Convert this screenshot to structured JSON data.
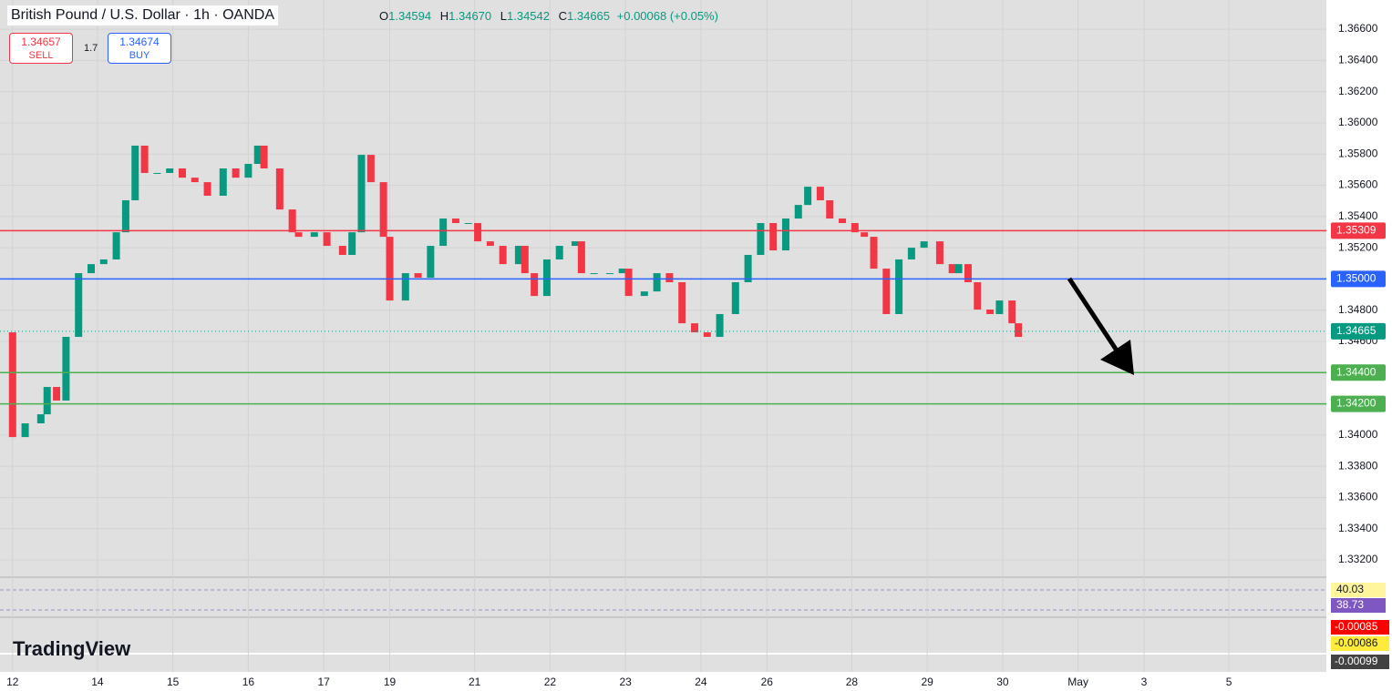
{
  "header": {
    "symbol": "British Pound / U.S. Dollar · 1h · OANDA",
    "open_label": "O",
    "open": "1.34594",
    "high_label": "H",
    "high": "1.34670",
    "low_label": "L",
    "low": "1.34542",
    "close_label": "C",
    "close": "1.34665",
    "change": "+0.00068 (+0.05%)"
  },
  "trade": {
    "sell_price": "1.34657",
    "sell": "SELL",
    "spread": "1.7",
    "buy_price": "1.34674",
    "buy": "BUY"
  },
  "indicators": {
    "rsi_labels": [
      "40.03",
      "38.73"
    ],
    "macd_labels": [
      "-0.00085",
      "-0.00086",
      "-0.00099"
    ]
  },
  "logo": "TradingView",
  "chart_data": {
    "type": "candlestick",
    "x": [
      -4,
      0,
      4,
      9,
      11,
      14,
      17,
      21,
      25,
      29,
      33,
      36,
      39,
      42,
      46,
      50,
      54,
      58,
      62,
      67,
      71,
      75,
      78,
      80,
      85,
      89,
      91,
      96,
      100,
      105,
      108,
      111,
      114,
      118,
      120,
      125,
      129,
      133,
      137,
      141,
      145,
      148,
      152,
      156,
      161,
      163,
      166,
      170,
      174,
      179,
      181,
      185,
      190,
      194,
      196,
      201,
      205,
      209,
      213,
      217,
      221,
      225,
      230,
      234,
      238,
      242,
      246,
      250,
      253,
      257,
      260,
      264,
      268,
      271,
      274,
      278,
      282,
      286,
      290,
      295,
      299,
      301,
      304,
      307,
      311,
      314,
      318,
      320
    ],
    "closes": [
      1.34658,
      1.33987,
      1.34075,
      1.34133,
      1.34308,
      1.34221,
      1.34629,
      1.35037,
      1.35095,
      1.35125,
      1.35299,
      1.35504,
      1.35854,
      1.35679,
      1.35679,
      1.35708,
      1.35649,
      1.3562,
      1.35533,
      1.35708,
      1.35649,
      1.35737,
      1.35854,
      1.35708,
      1.35445,
      1.35299,
      1.3527,
      1.35299,
      1.35212,
      1.35154,
      1.35299,
      1.35795,
      1.3562,
      1.3527,
      1.34862,
      1.35037,
      1.35008,
      1.35212,
      1.35387,
      1.35358,
      1.35358,
      1.35241,
      1.35212,
      1.35095,
      1.35212,
      1.35037,
      1.34891,
      1.35125,
      1.35212,
      1.35241,
      1.35037,
      1.35037,
      1.35037,
      1.35066,
      1.34891,
      1.3492,
      1.35037,
      1.34979,
      1.34716,
      1.34658,
      1.34629,
      1.34775,
      1.34979,
      1.35154,
      1.35358,
      1.35183,
      1.35387,
      1.35474,
      1.35591,
      1.35504,
      1.35387,
      1.35358,
      1.35299,
      1.3527,
      1.35066,
      1.34775,
      1.35125,
      1.352,
      1.35241,
      1.35095,
      1.35037,
      1.35095,
      1.34979,
      1.34804,
      1.34775,
      1.34862,
      1.34716,
      1.34629
    ],
    "up_color": "#089981",
    "down_color": "#f23645",
    "xlim": [
      -4,
      418
    ],
    "ylim": [
      1.33101,
      1.36787
    ],
    "xticks": [
      {
        "value": 0,
        "label": "12"
      },
      {
        "value": 27,
        "label": "14"
      },
      {
        "value": 51,
        "label": "15"
      },
      {
        "value": 75,
        "label": "16"
      },
      {
        "value": 99,
        "label": "17"
      },
      {
        "value": 120,
        "label": "19"
      },
      {
        "value": 147,
        "label": "21"
      },
      {
        "value": 171,
        "label": "22"
      },
      {
        "value": 195,
        "label": "23"
      },
      {
        "value": 219,
        "label": "24"
      },
      {
        "value": 240,
        "label": "26"
      },
      {
        "value": 267,
        "label": "28"
      },
      {
        "value": 291,
        "label": "29"
      },
      {
        "value": 315,
        "label": "30"
      },
      {
        "value": 339,
        "label": "May"
      },
      {
        "value": 360,
        "label": "3"
      },
      {
        "value": 387,
        "label": "5"
      }
    ],
    "yticks": [
      {
        "value": 1.332,
        "label": "1.33200"
      },
      {
        "value": 1.334,
        "label": "1.33400"
      },
      {
        "value": 1.336,
        "label": "1.33600"
      },
      {
        "value": 1.338,
        "label": "1.33800"
      },
      {
        "value": 1.34,
        "label": "1.34000"
      },
      {
        "value": 1.342,
        "label": "1.34200"
      },
      {
        "value": 1.344,
        "label": "1.34400"
      },
      {
        "value": 1.346,
        "label": "1.34600"
      },
      {
        "value": 1.348,
        "label": "1.34800"
      },
      {
        "value": 1.35,
        "label": "1.35000"
      },
      {
        "value": 1.352,
        "label": "1.35200"
      },
      {
        "value": 1.354,
        "label": "1.35400"
      },
      {
        "value": 1.356,
        "label": "1.35600"
      },
      {
        "value": 1.358,
        "label": "1.35800"
      },
      {
        "value": 1.36,
        "label": "1.36000"
      },
      {
        "value": 1.362,
        "label": "1.36200"
      },
      {
        "value": 1.364,
        "label": "1.36400"
      },
      {
        "value": 1.366,
        "label": "1.36600"
      }
    ],
    "grid": true,
    "levels": [
      {
        "value": 1.35309,
        "label": "1.35309",
        "color": "#f23645"
      },
      {
        "value": 1.35,
        "label": "1.35000",
        "color": "#2962ff"
      },
      {
        "value": 1.34665,
        "label": "1.34665",
        "color": "#089981"
      },
      {
        "value": 1.344,
        "label": "1.34400",
        "color": "#4caf50"
      },
      {
        "value": 1.342,
        "label": "1.34200",
        "color": "#4caf50"
      }
    ]
  }
}
